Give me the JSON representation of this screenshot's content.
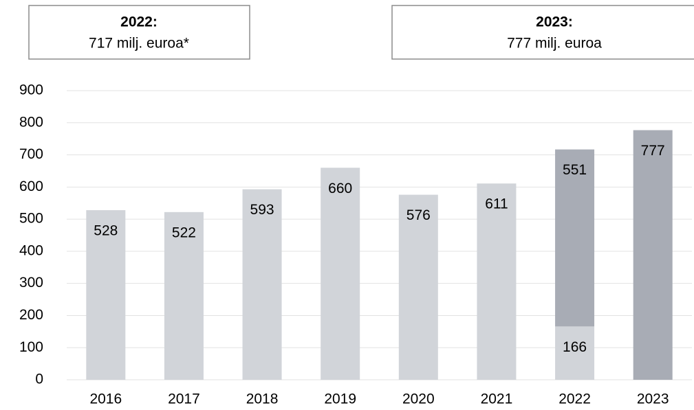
{
  "chart_data": {
    "type": "stacked_bar",
    "annotations": [
      {
        "title": "2022:",
        "text": "717 milj. euroa*"
      },
      {
        "title": "2023:",
        "text": "777 milj. euroa"
      }
    ],
    "categories": [
      "2016",
      "2017",
      "2018",
      "2019",
      "2020",
      "2021",
      "2022",
      "2023"
    ],
    "series": [
      {
        "color": "#d1d4d9",
        "values": [
          528,
          522,
          593,
          660,
          576,
          611,
          166,
          null
        ]
      },
      {
        "color": "#a8acb5",
        "values": [
          null,
          null,
          null,
          null,
          null,
          null,
          551,
          777
        ]
      }
    ],
    "ylim": [
      0,
      900
    ],
    "yticks": [
      0,
      100,
      200,
      300,
      400,
      500,
      600,
      700,
      800,
      900
    ],
    "grid": true
  }
}
